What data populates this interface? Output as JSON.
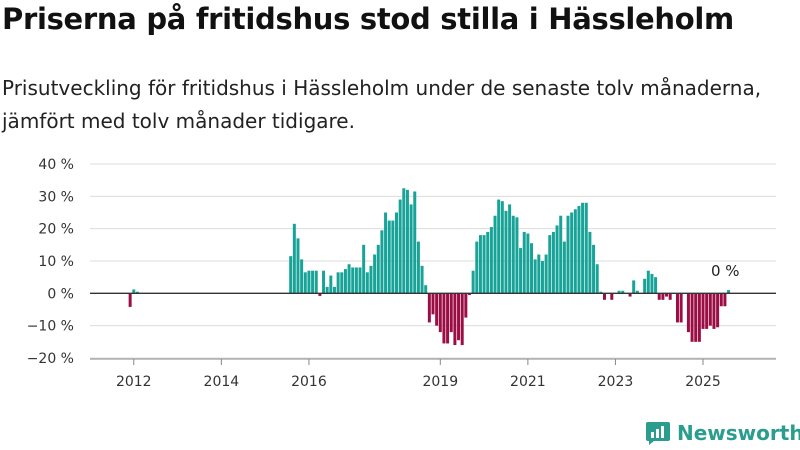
{
  "title": "Priserna på fritidshus stod stilla i Hässleholm",
  "subtitle": "Prisutveckling för fritidshus i Hässleholm under de senaste tolv månaderna, jämfört med tolv månader tidigare.",
  "brand": "Newsworthy",
  "colors": {
    "positive": "#17a398",
    "negative": "#9b0d45",
    "zero_line": "#333333",
    "brand": "#2a9d8f"
  },
  "chart_data": {
    "type": "bar",
    "x_start": "2011-01",
    "x_end": "2026-09",
    "ylim": [
      -20,
      40
    ],
    "y_ticks": [
      -20,
      -10,
      0,
      10,
      20,
      30,
      40
    ],
    "y_tick_labels": [
      "−20 %",
      "−10 %",
      "0 %",
      "10 %",
      "20 %",
      "30 %",
      "40 %"
    ],
    "x_ticks": [
      "2012",
      "2014",
      "2016",
      "2019",
      "2021",
      "2023",
      "2025"
    ],
    "x_tick_positions": [
      "2012-01",
      "2014-01",
      "2016-01",
      "2019-01",
      "2021-01",
      "2023-01",
      "2025-01"
    ],
    "annotation": {
      "text": "0 %",
      "x": "2025-06"
    },
    "series": [
      {
        "values": [
          {
            "x": "2011-12",
            "y": -4.2
          },
          {
            "x": "2012-01",
            "y": 1.2
          },
          {
            "x": "2012-02",
            "y": 0.5
          },
          {
            "x": "2015-08",
            "y": 11.5
          },
          {
            "x": "2015-09",
            "y": 21.5
          },
          {
            "x": "2015-10",
            "y": 17
          },
          {
            "x": "2015-11",
            "y": 10.5
          },
          {
            "x": "2015-12",
            "y": 6.5
          },
          {
            "x": "2016-01",
            "y": 7
          },
          {
            "x": "2016-02",
            "y": 7
          },
          {
            "x": "2016-03",
            "y": 7
          },
          {
            "x": "2016-04",
            "y": -0.8
          },
          {
            "x": "2016-05",
            "y": 7
          },
          {
            "x": "2016-06",
            "y": 2
          },
          {
            "x": "2016-07",
            "y": 5.5
          },
          {
            "x": "2016-08",
            "y": 2
          },
          {
            "x": "2016-09",
            "y": 6.5
          },
          {
            "x": "2016-10",
            "y": 6.5
          },
          {
            "x": "2016-11",
            "y": 7.5
          },
          {
            "x": "2016-12",
            "y": 9
          },
          {
            "x": "2017-01",
            "y": 8
          },
          {
            "x": "2017-02",
            "y": 8
          },
          {
            "x": "2017-03",
            "y": 8
          },
          {
            "x": "2017-04",
            "y": 15
          },
          {
            "x": "2017-05",
            "y": 6.5
          },
          {
            "x": "2017-06",
            "y": 8.5
          },
          {
            "x": "2017-07",
            "y": 12
          },
          {
            "x": "2017-08",
            "y": 15
          },
          {
            "x": "2017-09",
            "y": 19.5
          },
          {
            "x": "2017-10",
            "y": 25
          },
          {
            "x": "2017-11",
            "y": 22.5
          },
          {
            "x": "2017-12",
            "y": 22.5
          },
          {
            "x": "2018-01",
            "y": 25
          },
          {
            "x": "2018-02",
            "y": 29
          },
          {
            "x": "2018-03",
            "y": 32.5
          },
          {
            "x": "2018-04",
            "y": 32
          },
          {
            "x": "2018-05",
            "y": 27.5
          },
          {
            "x": "2018-06",
            "y": 31.5
          },
          {
            "x": "2018-07",
            "y": 16
          },
          {
            "x": "2018-08",
            "y": 8.5
          },
          {
            "x": "2018-09",
            "y": 2.5
          },
          {
            "x": "2018-10",
            "y": -9
          },
          {
            "x": "2018-11",
            "y": -6.5
          },
          {
            "x": "2018-12",
            "y": -10
          },
          {
            "x": "2019-01",
            "y": -12
          },
          {
            "x": "2019-02",
            "y": -15.5
          },
          {
            "x": "2019-03",
            "y": -15.5
          },
          {
            "x": "2019-04",
            "y": -12
          },
          {
            "x": "2019-05",
            "y": -16
          },
          {
            "x": "2019-06",
            "y": -14.5
          },
          {
            "x": "2019-07",
            "y": -16
          },
          {
            "x": "2019-08",
            "y": -7.5
          },
          {
            "x": "2019-09",
            "y": -0.5
          },
          {
            "x": "2019-10",
            "y": 7
          },
          {
            "x": "2019-11",
            "y": 16
          },
          {
            "x": "2019-12",
            "y": 18
          },
          {
            "x": "2020-01",
            "y": 18
          },
          {
            "x": "2020-02",
            "y": 19
          },
          {
            "x": "2020-03",
            "y": 20.5
          },
          {
            "x": "2020-04",
            "y": 24
          },
          {
            "x": "2020-05",
            "y": 29
          },
          {
            "x": "2020-06",
            "y": 28.5
          },
          {
            "x": "2020-07",
            "y": 25.5
          },
          {
            "x": "2020-08",
            "y": 27.5
          },
          {
            "x": "2020-09",
            "y": 24
          },
          {
            "x": "2020-10",
            "y": 23.5
          },
          {
            "x": "2020-11",
            "y": 14
          },
          {
            "x": "2020-12",
            "y": 19
          },
          {
            "x": "2021-01",
            "y": 18.5
          },
          {
            "x": "2021-02",
            "y": 15.5
          },
          {
            "x": "2021-03",
            "y": 10.5
          },
          {
            "x": "2021-04",
            "y": 12
          },
          {
            "x": "2021-05",
            "y": 10
          },
          {
            "x": "2021-06",
            "y": 12
          },
          {
            "x": "2021-07",
            "y": 18
          },
          {
            "x": "2021-08",
            "y": 19
          },
          {
            "x": "2021-09",
            "y": 21
          },
          {
            "x": "2021-10",
            "y": 24
          },
          {
            "x": "2021-11",
            "y": 16
          },
          {
            "x": "2021-12",
            "y": 24
          },
          {
            "x": "2022-01",
            "y": 25
          },
          {
            "x": "2022-02",
            "y": 26
          },
          {
            "x": "2022-03",
            "y": 27
          },
          {
            "x": "2022-04",
            "y": 28
          },
          {
            "x": "2022-05",
            "y": 28
          },
          {
            "x": "2022-06",
            "y": 19
          },
          {
            "x": "2022-07",
            "y": 15
          },
          {
            "x": "2022-08",
            "y": 9
          },
          {
            "x": "2022-09",
            "y": 0.5
          },
          {
            "x": "2022-10",
            "y": -2
          },
          {
            "x": "2022-12",
            "y": -2
          },
          {
            "x": "2023-02",
            "y": 0.8
          },
          {
            "x": "2023-03",
            "y": 0.8
          },
          {
            "x": "2023-05",
            "y": -1
          },
          {
            "x": "2023-06",
            "y": 4
          },
          {
            "x": "2023-07",
            "y": 0.8
          },
          {
            "x": "2023-09",
            "y": 4.5
          },
          {
            "x": "2023-10",
            "y": 7
          },
          {
            "x": "2023-11",
            "y": 6
          },
          {
            "x": "2023-12",
            "y": 5
          },
          {
            "x": "2024-01",
            "y": -2
          },
          {
            "x": "2024-02",
            "y": -2
          },
          {
            "x": "2024-03",
            "y": -1
          },
          {
            "x": "2024-04",
            "y": -2
          },
          {
            "x": "2024-06",
            "y": -9
          },
          {
            "x": "2024-07",
            "y": -9
          },
          {
            "x": "2024-09",
            "y": -12
          },
          {
            "x": "2024-10",
            "y": -15
          },
          {
            "x": "2024-11",
            "y": -15
          },
          {
            "x": "2024-12",
            "y": -15
          },
          {
            "x": "2025-01",
            "y": -11
          },
          {
            "x": "2025-02",
            "y": -11
          },
          {
            "x": "2025-03",
            "y": -10
          },
          {
            "x": "2025-04",
            "y": -11
          },
          {
            "x": "2025-05",
            "y": -10.5
          },
          {
            "x": "2025-06",
            "y": -4
          },
          {
            "x": "2025-07",
            "y": -4
          },
          {
            "x": "2025-08",
            "y": 1
          }
        ]
      }
    ]
  }
}
